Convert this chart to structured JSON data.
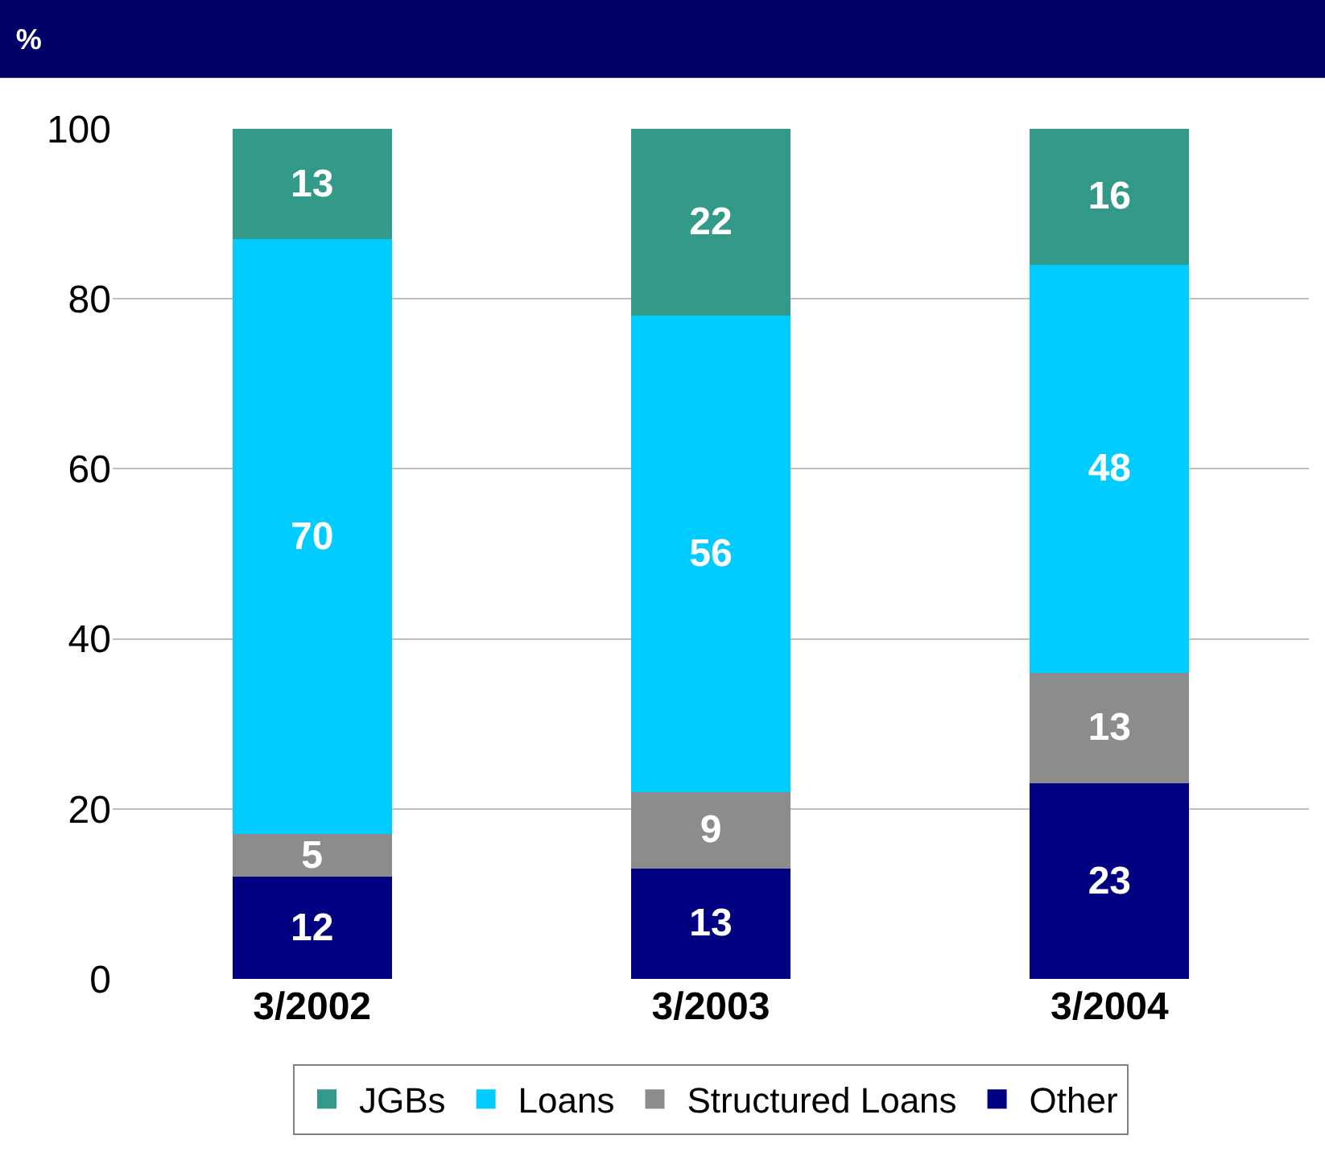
{
  "chart_data": {
    "type": "bar",
    "title": "%",
    "stacked": true,
    "data_labels": true,
    "categories": [
      "3/2002",
      "3/2003",
      "3/2004"
    ],
    "series": [
      {
        "name": "Other",
        "color": "#000080",
        "values": [
          12,
          13,
          23
        ]
      },
      {
        "name": "Structured Loans",
        "color": "#8c8c8c",
        "values": [
          5,
          9,
          13
        ]
      },
      {
        "name": "Loans",
        "color": "#00ccff",
        "values": [
          70,
          56,
          48
        ]
      },
      {
        "name": "JGBs",
        "color": "#339988",
        "values": [
          13,
          22,
          16
        ]
      }
    ],
    "ylim": [
      0,
      100
    ],
    "yticks": [
      0,
      20,
      40,
      60,
      80,
      100
    ],
    "grid": "y",
    "legend": "bottom"
  }
}
